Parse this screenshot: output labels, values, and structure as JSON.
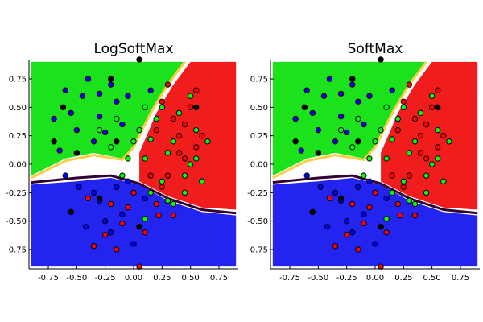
{
  "chart_data": [
    {
      "type": "scatter",
      "title": "LogSoftMax",
      "xlim": [
        -0.92,
        0.92
      ],
      "ylim": [
        0.92,
        -0.92
      ],
      "y_axis_inverted": true,
      "x_ticks": [
        "-0.75",
        "-0.50",
        "-0.25",
        "0.00",
        "0.25",
        "0.50",
        "0.75"
      ],
      "y_ticks": [
        "-0.75",
        "-0.50",
        "-0.25",
        "0.00",
        "0.25",
        "0.50",
        "0.75"
      ],
      "background": "decision-region heatmap (blue, red, green classes)",
      "grid": false,
      "legend": "none"
    },
    {
      "type": "scatter",
      "title": "SoftMax",
      "xlim": [
        -0.92,
        0.92
      ],
      "ylim": [
        0.92,
        -0.92
      ],
      "y_axis_inverted": true,
      "x_ticks": [
        "-0.75",
        "-0.50",
        "-0.25",
        "0.00",
        "0.25",
        "0.50",
        "0.75"
      ],
      "y_ticks": [
        "-0.75",
        "-0.50",
        "-0.25",
        "0.00",
        "0.25",
        "0.50",
        "0.75"
      ],
      "background": "decision-region heatmap (blue, red, green classes)",
      "grid": false,
      "legend": "none"
    }
  ],
  "classes": {
    "blue": {
      "color": "#0000ff",
      "points": [
        [
          -0.55,
          -0.42
        ],
        [
          -0.3,
          -0.32
        ],
        [
          -0.1,
          -0.44
        ],
        [
          0.05,
          -0.55
        ],
        [
          -0.48,
          -0.2
        ],
        [
          -0.2,
          -0.6
        ],
        [
          -0.35,
          -0.25
        ],
        [
          0.1,
          -0.3
        ],
        [
          -0.6,
          -0.1
        ],
        [
          -0.15,
          -0.2
        ],
        [
          0.0,
          -0.7
        ],
        [
          -0.42,
          -0.55
        ],
        [
          -0.05,
          -0.15
        ],
        [
          -0.25,
          -0.5
        ],
        [
          -0.65,
          0.12
        ],
        [
          -0.5,
          0.3
        ],
        [
          -0.3,
          0.42
        ],
        [
          -0.15,
          0.55
        ],
        [
          -0.45,
          0.6
        ],
        [
          -0.2,
          0.7
        ],
        [
          -0.55,
          0.45
        ],
        [
          -0.35,
          0.2
        ],
        [
          -0.1,
          0.35
        ],
        [
          -0.6,
          0.65
        ],
        [
          -0.25,
          0.28
        ],
        [
          -0.4,
          0.75
        ],
        [
          -0.05,
          0.6
        ],
        [
          0.15,
          0.65
        ],
        [
          -0.7,
          0.4
        ],
        [
          -0.3,
          0.62
        ]
      ]
    },
    "red": {
      "color": "#ff0000",
      "points": [
        [
          -0.35,
          -0.72
        ],
        [
          -0.15,
          -0.75
        ],
        [
          0.05,
          -0.9
        ],
        [
          -0.1,
          -0.52
        ],
        [
          0.2,
          -0.35
        ],
        [
          0.25,
          -0.2
        ],
        [
          0.35,
          -0.45
        ],
        [
          0.15,
          -0.1
        ],
        [
          -0.25,
          -0.62
        ],
        [
          0.1,
          -0.6
        ],
        [
          -0.05,
          -0.38
        ],
        [
          0.3,
          -0.1
        ],
        [
          0.45,
          0.05
        ],
        [
          0.4,
          0.25
        ],
        [
          0.55,
          0.15
        ],
        [
          0.35,
          0.4
        ],
        [
          0.5,
          0.5
        ],
        [
          0.25,
          0.55
        ],
        [
          0.6,
          0.25
        ],
        [
          0.45,
          0.35
        ],
        [
          0.2,
          0.3
        ],
        [
          0.55,
          0.65
        ],
        [
          0.3,
          0.7
        ],
        [
          0.4,
          0.1
        ],
        [
          -0.4,
          -0.3
        ],
        [
          -0.2,
          -0.35
        ],
        [
          0.0,
          -0.25
        ],
        [
          0.22,
          -0.45
        ]
      ]
    },
    "green": {
      "color": "#00ff00",
      "points": [
        [
          0.1,
          -0.48
        ],
        [
          0.3,
          -0.32
        ],
        [
          0.45,
          -0.25
        ],
        [
          0.25,
          -0.15
        ],
        [
          0.6,
          -0.15
        ],
        [
          0.1,
          0.05
        ],
        [
          0.3,
          0.1
        ],
        [
          0.5,
          0.0
        ],
        [
          0.55,
          0.3
        ],
        [
          0.2,
          0.4
        ],
        [
          0.4,
          0.45
        ],
        [
          0.15,
          0.22
        ],
        [
          0.65,
          0.2
        ],
        [
          0.35,
          0.2
        ],
        [
          0.05,
          0.3
        ],
        [
          0.5,
          0.6
        ],
        [
          0.25,
          0.5
        ],
        [
          -0.2,
          0.15
        ],
        [
          -0.05,
          0.05
        ],
        [
          0.0,
          0.2
        ],
        [
          0.45,
          -0.1
        ],
        [
          0.1,
          0.5
        ],
        [
          -0.1,
          -0.1
        ],
        [
          0.35,
          -0.35
        ],
        [
          0.15,
          -0.25
        ],
        [
          0.55,
          0.05
        ],
        [
          -0.3,
          0.3
        ],
        [
          -0.15,
          0.4
        ]
      ]
    },
    "black": {
      "color": "#000000",
      "points": [
        [
          -0.55,
          -0.42
        ],
        [
          -0.7,
          0.2
        ],
        [
          -0.62,
          0.5
        ],
        [
          -0.3,
          -0.3
        ],
        [
          0.05,
          0.92
        ],
        [
          0.55,
          0.5
        ],
        [
          -0.2,
          0.75
        ],
        [
          0.05,
          -0.55
        ],
        [
          -0.5,
          0.1
        ],
        [
          -0.15,
          0.2
        ]
      ]
    }
  }
}
